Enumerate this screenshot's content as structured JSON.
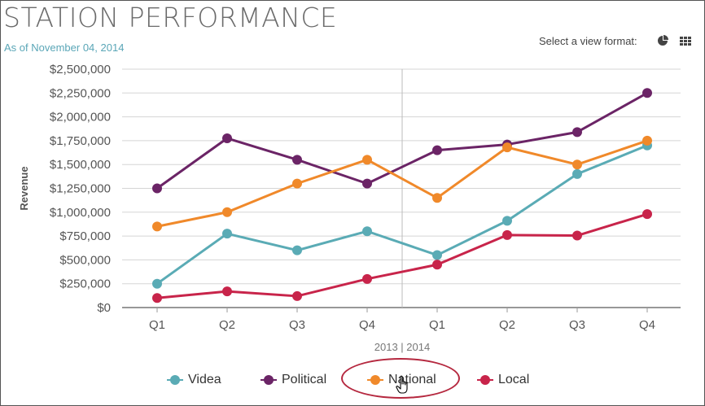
{
  "header": {
    "title": "STATION PERFORMANCE",
    "as_of": "As of November 04, 2014",
    "view_format_label": "Select a view format:",
    "view_icons": [
      "pie-chart-icon",
      "grid-icon"
    ]
  },
  "chart_data": {
    "type": "line",
    "title": "STATION PERFORMANCE",
    "xlabel": "2013 | 2014",
    "ylabel": "Revenue",
    "x_groups": [
      "2013",
      "2014"
    ],
    "categories": [
      "Q1",
      "Q2",
      "Q3",
      "Q4",
      "Q1",
      "Q2",
      "Q3",
      "Q4"
    ],
    "ylim": [
      0,
      2500000
    ],
    "y_ticks": [
      "$0",
      "$250,000",
      "$500,000",
      "$750,000",
      "$1,000,000",
      "$1,250,000",
      "$1,500,000",
      "$1,750,000",
      "$2,000,000",
      "$2,250,000",
      "$2,500,000"
    ],
    "grid": true,
    "legend_position": "bottom",
    "series": [
      {
        "name": "Videa",
        "color": "#5aabb5",
        "values": [
          250000,
          775000,
          600000,
          800000,
          550000,
          910000,
          1400000,
          1700000
        ]
      },
      {
        "name": "Political",
        "color": "#6b2466",
        "values": [
          1250000,
          1775000,
          1550000,
          1300000,
          1650000,
          1710000,
          1840000,
          2250000
        ]
      },
      {
        "name": "National",
        "color": "#f0892a",
        "values": [
          850000,
          1000000,
          1300000,
          1550000,
          1150000,
          1680000,
          1500000,
          1750000
        ]
      },
      {
        "name": "Local",
        "color": "#c8244a",
        "values": [
          100000,
          170000,
          120000,
          300000,
          450000,
          760000,
          755000,
          980000
        ]
      }
    ]
  },
  "annotation": {
    "highlighted_legend_item": "National",
    "cursor_icon": "hand-pointer-icon"
  }
}
